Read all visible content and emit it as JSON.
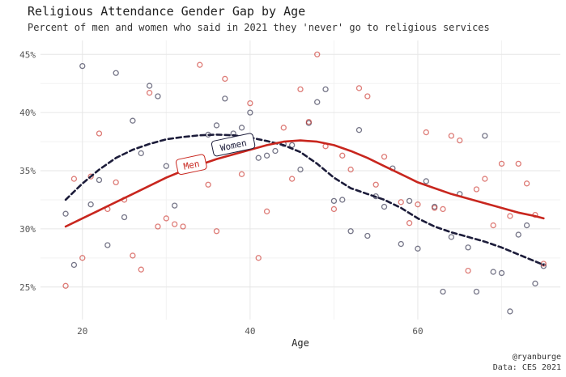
{
  "chart_data": {
    "type": "scatter",
    "title": "Religious Attendance Gender Gap by Age",
    "subtitle": "Percent of men and women who said in 2021 they 'never' go to religious services",
    "xlabel": "Age",
    "ylabel": "",
    "xlim": [
      15,
      77
    ],
    "ylim": [
      22.2,
      46.2
    ],
    "x_ticks": [
      20,
      40,
      60
    ],
    "y_ticks": [
      25,
      30,
      35,
      40,
      45
    ],
    "y_tick_format": "percent",
    "grid": true,
    "legend": "none (direct labels)",
    "series": [
      {
        "name": "Women",
        "color": "#1c1c3a",
        "smooth_style": "dashed",
        "label": "Women",
        "label_at": [
          38,
          37.2
        ],
        "points": [
          [
            18,
            31.3
          ],
          [
            19,
            26.9
          ],
          [
            20,
            44
          ],
          [
            21,
            32.1
          ],
          [
            22,
            34.2
          ],
          [
            23,
            28.6
          ],
          [
            24,
            43.4
          ],
          [
            25,
            31
          ],
          [
            26,
            39.3
          ],
          [
            27,
            36.5
          ],
          [
            28,
            42.3
          ],
          [
            29,
            41.4
          ],
          [
            30,
            35.4
          ],
          [
            31,
            32
          ],
          [
            33,
            35.7
          ],
          [
            35,
            38.1
          ],
          [
            36,
            38.9
          ],
          [
            37,
            41.2
          ],
          [
            38,
            38.2
          ],
          [
            39,
            38.7
          ],
          [
            40,
            40
          ],
          [
            41,
            36.1
          ],
          [
            42,
            36.3
          ],
          [
            43,
            36.7
          ],
          [
            44,
            37.3
          ],
          [
            45,
            37.2
          ],
          [
            46,
            35.1
          ],
          [
            47,
            39.1
          ],
          [
            48,
            40.9
          ],
          [
            49,
            42
          ],
          [
            50,
            32.4
          ],
          [
            51,
            32.5
          ],
          [
            52,
            29.8
          ],
          [
            53,
            38.5
          ],
          [
            54,
            29.4
          ],
          [
            55,
            32.8
          ],
          [
            56,
            31.9
          ],
          [
            57,
            35.2
          ],
          [
            58,
            28.7
          ],
          [
            59,
            32.4
          ],
          [
            60,
            28.3
          ],
          [
            61,
            34.1
          ],
          [
            62,
            31.9
          ],
          [
            63,
            24.6
          ],
          [
            64,
            29.3
          ],
          [
            65,
            33
          ],
          [
            66,
            28.4
          ],
          [
            67,
            24.6
          ],
          [
            68,
            38
          ],
          [
            69,
            26.3
          ],
          [
            70,
            26.2
          ],
          [
            71,
            22.9
          ],
          [
            72,
            29.5
          ],
          [
            73,
            30.3
          ],
          [
            74,
            25.3
          ],
          [
            75,
            26.8
          ]
        ],
        "smooth": [
          [
            18,
            32.5
          ],
          [
            20,
            33.9
          ],
          [
            22,
            35.1
          ],
          [
            24,
            36.1
          ],
          [
            26,
            36.8
          ],
          [
            28,
            37.3
          ],
          [
            30,
            37.7
          ],
          [
            32,
            37.9
          ],
          [
            34,
            38.05
          ],
          [
            36,
            38.1
          ],
          [
            38,
            38.05
          ],
          [
            40,
            37.85
          ],
          [
            42,
            37.55
          ],
          [
            44,
            37.2
          ],
          [
            46,
            36.6
          ],
          [
            48,
            35.6
          ],
          [
            50,
            34.4
          ],
          [
            52,
            33.5
          ],
          [
            54,
            33
          ],
          [
            56,
            32.5
          ],
          [
            58,
            31.8
          ],
          [
            60,
            30.9
          ],
          [
            62,
            30.2
          ],
          [
            64,
            29.7
          ],
          [
            66,
            29.3
          ],
          [
            68,
            28.9
          ],
          [
            70,
            28.4
          ],
          [
            72,
            27.8
          ],
          [
            74,
            27.2
          ],
          [
            75,
            26.9
          ]
        ]
      },
      {
        "name": "Men",
        "color": "#c8261e",
        "smooth_style": "solid",
        "label": "Men",
        "label_at": [
          33,
          35.5
        ],
        "points": [
          [
            18,
            25.1
          ],
          [
            19,
            34.3
          ],
          [
            20,
            27.5
          ],
          [
            21,
            34.5
          ],
          [
            22,
            38.2
          ],
          [
            23,
            31.7
          ],
          [
            24,
            34
          ],
          [
            25,
            32.5
          ],
          [
            26,
            27.7
          ],
          [
            27,
            26.5
          ],
          [
            28,
            41.7
          ],
          [
            29,
            30.2
          ],
          [
            30,
            30.9
          ],
          [
            31,
            30.4
          ],
          [
            32,
            30.2
          ],
          [
            34,
            44.1
          ],
          [
            35,
            33.8
          ],
          [
            36,
            29.8
          ],
          [
            37,
            42.9
          ],
          [
            39,
            34.7
          ],
          [
            40,
            40.8
          ],
          [
            41,
            27.5
          ],
          [
            42,
            31.5
          ],
          [
            44,
            38.7
          ],
          [
            45,
            34.3
          ],
          [
            46,
            42
          ],
          [
            47,
            39.2
          ],
          [
            48,
            45
          ],
          [
            49,
            37.1
          ],
          [
            50,
            31.7
          ],
          [
            51,
            36.3
          ],
          [
            52,
            35.1
          ],
          [
            53,
            42.1
          ],
          [
            54,
            41.4
          ],
          [
            55,
            33.8
          ],
          [
            56,
            36.2
          ],
          [
            58,
            32.3
          ],
          [
            59,
            30.5
          ],
          [
            60,
            32.1
          ],
          [
            61,
            38.3
          ],
          [
            62,
            31.8
          ],
          [
            63,
            31.7
          ],
          [
            64,
            38
          ],
          [
            65,
            37.6
          ],
          [
            66,
            26.4
          ],
          [
            67,
            33.4
          ],
          [
            68,
            34.3
          ],
          [
            69,
            30.3
          ],
          [
            70,
            35.6
          ],
          [
            71,
            31.1
          ],
          [
            72,
            35.6
          ],
          [
            73,
            33.9
          ],
          [
            74,
            31.2
          ],
          [
            75,
            27
          ]
        ],
        "smooth": [
          [
            18,
            30.2
          ],
          [
            20,
            30.9
          ],
          [
            22,
            31.6
          ],
          [
            24,
            32.3
          ],
          [
            26,
            33
          ],
          [
            28,
            33.7
          ],
          [
            30,
            34.4
          ],
          [
            32,
            35
          ],
          [
            34,
            35.5
          ],
          [
            36,
            36
          ],
          [
            38,
            36.4
          ],
          [
            40,
            36.8
          ],
          [
            42,
            37.2
          ],
          [
            44,
            37.5
          ],
          [
            46,
            37.6
          ],
          [
            48,
            37.5
          ],
          [
            50,
            37.2
          ],
          [
            52,
            36.7
          ],
          [
            54,
            36.1
          ],
          [
            56,
            35.4
          ],
          [
            58,
            34.7
          ],
          [
            60,
            34
          ],
          [
            62,
            33.5
          ],
          [
            64,
            33
          ],
          [
            66,
            32.6
          ],
          [
            68,
            32.2
          ],
          [
            70,
            31.8
          ],
          [
            72,
            31.4
          ],
          [
            74,
            31.1
          ],
          [
            75,
            30.9
          ]
        ]
      }
    ]
  },
  "caption": {
    "handle": "@ryanburge",
    "source": "Data: CES 2021"
  }
}
